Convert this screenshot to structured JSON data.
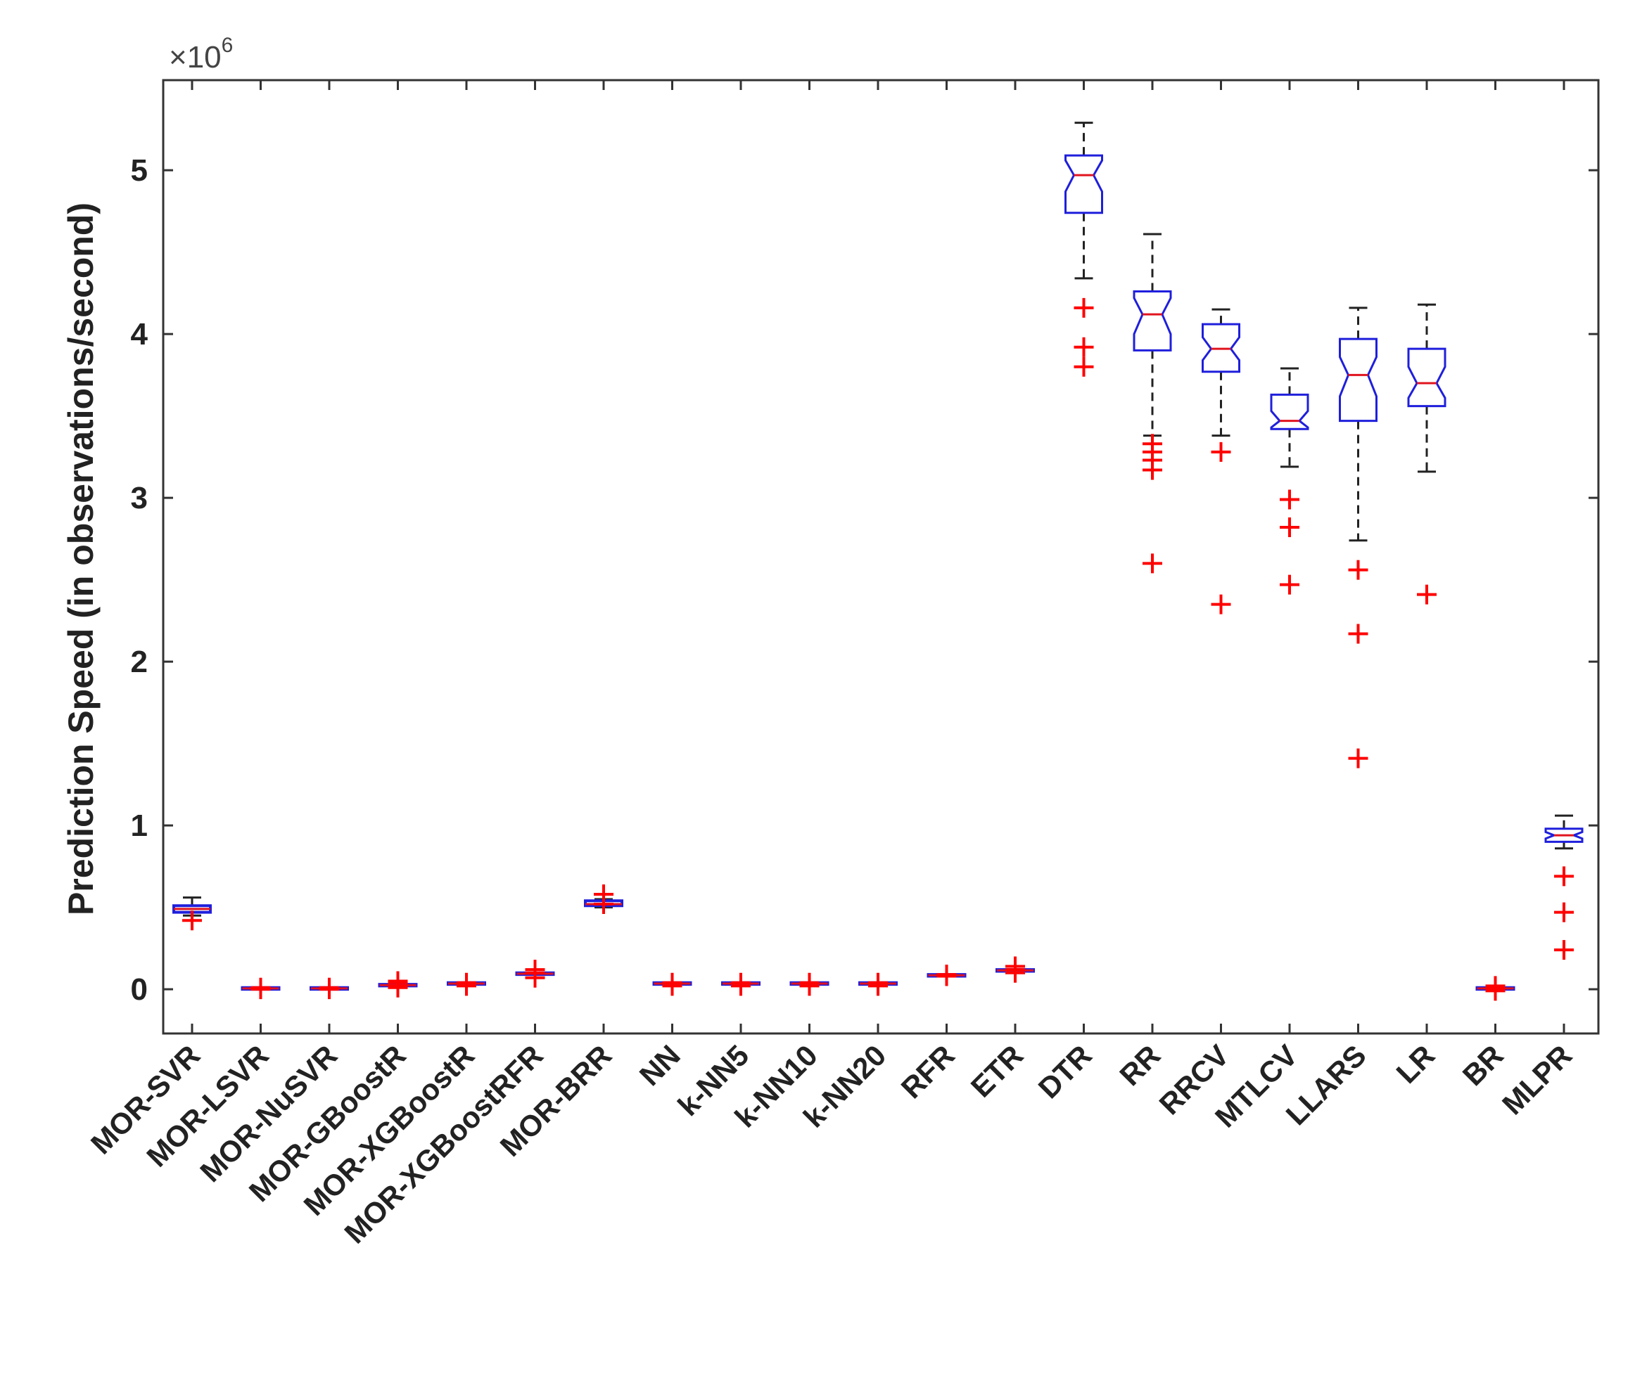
{
  "chart_data": {
    "type": "boxplot",
    "title": "",
    "xlabel": "",
    "ylabel": "Prediction Speed (in observations/second)",
    "y_multiplier_label": "×10",
    "y_multiplier_exponent": "6",
    "ylim": [
      -0.27,
      5.55
    ],
    "yticks": [
      0,
      1,
      2,
      3,
      4,
      5
    ],
    "grid": false,
    "notched": true,
    "colors": {
      "box": "#1f1fdc",
      "median": "#e0141e",
      "whisker": "#222222",
      "outlier": "#ff0000",
      "axis": "#333333"
    },
    "categories": [
      "MOR-SVR",
      "MOR-LSVR",
      "MOR-NuSVR",
      "MOR-GBoostR",
      "MOR-XGBoostR",
      "MOR-XGBoostRFR",
      "MOR-BRR",
      "NN",
      "k-NN5",
      "k-NN10",
      "k-NN20",
      "RFR",
      "ETR",
      "DTR",
      "RR",
      "RRCV",
      "MTLCV",
      "LLARS",
      "LR",
      "BR",
      "MLPR"
    ],
    "boxes": [
      {
        "q1": 0.47,
        "median": 0.49,
        "q3": 0.51,
        "notch_lo": 0.48,
        "notch_hi": 0.5,
        "whisker_lo": 0.45,
        "whisker_hi": 0.56,
        "outliers": [
          0.42
        ]
      },
      {
        "q1": 0.0,
        "median": 0.005,
        "q3": 0.01,
        "notch_lo": 0.003,
        "notch_hi": 0.007,
        "whisker_lo": 0.0,
        "whisker_hi": 0.01,
        "outliers": [
          0.0,
          0.01
        ]
      },
      {
        "q1": 0.0,
        "median": 0.005,
        "q3": 0.01,
        "notch_lo": 0.003,
        "notch_hi": 0.007,
        "whisker_lo": 0.0,
        "whisker_hi": 0.01,
        "outliers": [
          0.0,
          0.01
        ]
      },
      {
        "q1": 0.02,
        "median": 0.025,
        "q3": 0.03,
        "notch_lo": 0.023,
        "notch_hi": 0.027,
        "whisker_lo": 0.02,
        "whisker_hi": 0.03,
        "outliers": [
          0.01,
          0.02,
          0.04,
          0.05
        ]
      },
      {
        "q1": 0.03,
        "median": 0.035,
        "q3": 0.04,
        "notch_lo": 0.033,
        "notch_hi": 0.037,
        "whisker_lo": 0.03,
        "whisker_hi": 0.04,
        "outliers": [
          0.02,
          0.04
        ]
      },
      {
        "q1": 0.09,
        "median": 0.095,
        "q3": 0.1,
        "notch_lo": 0.093,
        "notch_hi": 0.097,
        "whisker_lo": 0.09,
        "whisker_hi": 0.1,
        "outliers": [
          0.07,
          0.1,
          0.12
        ]
      },
      {
        "q1": 0.51,
        "median": 0.52,
        "q3": 0.54,
        "notch_lo": 0.515,
        "notch_hi": 0.525,
        "whisker_lo": 0.5,
        "whisker_hi": 0.55,
        "outliers": [
          0.52,
          0.58
        ]
      },
      {
        "q1": 0.03,
        "median": 0.035,
        "q3": 0.04,
        "notch_lo": 0.033,
        "notch_hi": 0.037,
        "whisker_lo": 0.03,
        "whisker_hi": 0.04,
        "outliers": [
          0.02,
          0.04
        ]
      },
      {
        "q1": 0.03,
        "median": 0.035,
        "q3": 0.04,
        "notch_lo": 0.033,
        "notch_hi": 0.037,
        "whisker_lo": 0.03,
        "whisker_hi": 0.04,
        "outliers": [
          0.02,
          0.04
        ]
      },
      {
        "q1": 0.03,
        "median": 0.035,
        "q3": 0.04,
        "notch_lo": 0.033,
        "notch_hi": 0.037,
        "whisker_lo": 0.03,
        "whisker_hi": 0.04,
        "outliers": [
          0.02,
          0.04
        ]
      },
      {
        "q1": 0.03,
        "median": 0.035,
        "q3": 0.04,
        "notch_lo": 0.033,
        "notch_hi": 0.037,
        "whisker_lo": 0.03,
        "whisker_hi": 0.04,
        "outliers": [
          0.02,
          0.04
        ]
      },
      {
        "q1": 0.08,
        "median": 0.085,
        "q3": 0.09,
        "notch_lo": 0.083,
        "notch_hi": 0.087,
        "whisker_lo": 0.08,
        "whisker_hi": 0.09,
        "outliers": [
          0.08,
          0.09
        ]
      },
      {
        "q1": 0.11,
        "median": 0.115,
        "q3": 0.12,
        "notch_lo": 0.113,
        "notch_hi": 0.117,
        "whisker_lo": 0.11,
        "whisker_hi": 0.12,
        "outliers": [
          0.1,
          0.12,
          0.14
        ]
      },
      {
        "q1": 4.74,
        "median": 4.97,
        "q3": 5.09,
        "notch_lo": 4.87,
        "notch_hi": 5.06,
        "whisker_lo": 4.34,
        "whisker_hi": 5.29,
        "outliers": [
          3.8,
          3.92,
          4.16
        ]
      },
      {
        "q1": 3.9,
        "median": 4.12,
        "q3": 4.26,
        "notch_lo": 4.0,
        "notch_hi": 4.22,
        "whisker_lo": 3.38,
        "whisker_hi": 4.61,
        "outliers": [
          2.6,
          3.17,
          3.23,
          3.28,
          3.33
        ]
      },
      {
        "q1": 3.77,
        "median": 3.91,
        "q3": 4.06,
        "notch_lo": 3.84,
        "notch_hi": 3.98,
        "whisker_lo": 3.38,
        "whisker_hi": 4.15,
        "outliers": [
          2.35,
          3.28
        ]
      },
      {
        "q1": 3.42,
        "median": 3.47,
        "q3": 3.63,
        "notch_lo": 3.43,
        "notch_hi": 3.53,
        "whisker_lo": 3.19,
        "whisker_hi": 3.79,
        "outliers": [
          2.47,
          2.82,
          2.99
        ]
      },
      {
        "q1": 3.47,
        "median": 3.75,
        "q3": 3.97,
        "notch_lo": 3.62,
        "notch_hi": 3.86,
        "whisker_lo": 2.74,
        "whisker_hi": 4.16,
        "outliers": [
          1.41,
          2.17,
          2.56
        ]
      },
      {
        "q1": 3.56,
        "median": 3.7,
        "q3": 3.91,
        "notch_lo": 3.61,
        "notch_hi": 3.8,
        "whisker_lo": 3.16,
        "whisker_hi": 4.18,
        "outliers": [
          2.41
        ]
      },
      {
        "q1": 0.0,
        "median": 0.005,
        "q3": 0.01,
        "notch_lo": 0.003,
        "notch_hi": 0.007,
        "whisker_lo": 0.0,
        "whisker_hi": 0.01,
        "outliers": [
          -0.01,
          0.0,
          0.01,
          0.02
        ]
      },
      {
        "q1": 0.9,
        "median": 0.94,
        "q3": 0.98,
        "notch_lo": 0.92,
        "notch_hi": 0.96,
        "whisker_lo": 0.86,
        "whisker_hi": 1.06,
        "outliers": [
          0.24,
          0.47,
          0.69
        ]
      }
    ]
  }
}
